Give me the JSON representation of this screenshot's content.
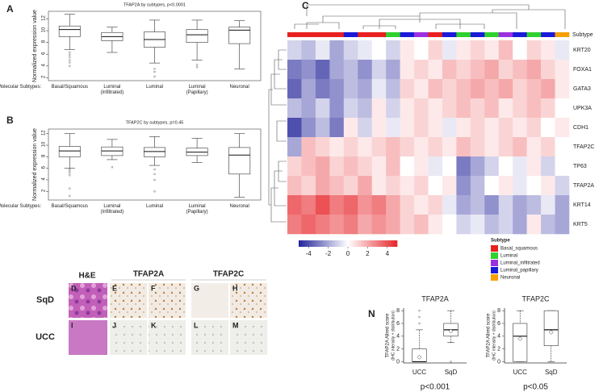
{
  "chart_data": [
    {
      "type": "box",
      "title": "TFAP2A by subtypes, p<0.0001",
      "ylabel": "Normalized expression value",
      "x_label": "Molecular Subtypes:",
      "categories": [
        "Basal/Squamous",
        "Luminal\n(Infiltrated)",
        "Luminal",
        "Luminal\n(Papillary)",
        "Neuronal"
      ],
      "boxes": [
        {
          "min": 6.8,
          "q1": 9.0,
          "median": 10.2,
          "q3": 10.8,
          "max": 12.8,
          "outliers": [
            6.3,
            5.9,
            5.5,
            5.0,
            4.6,
            4.0
          ]
        },
        {
          "min": 6.3,
          "q1": 8.3,
          "median": 9.0,
          "q3": 9.7,
          "max": 10.6,
          "outliers": []
        },
        {
          "min": 4.5,
          "q1": 7.2,
          "median": 8.5,
          "q3": 9.8,
          "max": 11.8,
          "outliers": [
            3.5,
            3.0,
            2.2
          ]
        },
        {
          "min": 5.0,
          "q1": 8.0,
          "median": 9.3,
          "q3": 10.2,
          "max": 11.8,
          "outliers": [
            4.2,
            3.8
          ]
        },
        {
          "min": 3.5,
          "q1": 7.8,
          "median": 10.1,
          "q3": 10.6,
          "max": 11.7,
          "outliers": []
        }
      ],
      "ylim": [
        1.5,
        13.3
      ],
      "yticks": [
        2,
        4,
        6,
        8,
        10,
        12
      ]
    },
    {
      "type": "box",
      "title": "TFAP2C by subtypes, p=0.45",
      "ylabel": "Normalized expression value",
      "x_label": "Molecular Subtypes:",
      "categories": [
        "Basal/Squamous",
        "Luminal\n(Infiltrated)",
        "Luminal",
        "Luminal\n(Papillary)",
        "Neuronal"
      ],
      "boxes": [
        {
          "min": 6.0,
          "q1": 8.0,
          "median": 9.0,
          "q3": 9.8,
          "max": 12.0,
          "outliers": [
            5.8,
            5.5,
            5.2,
            4.8,
            2.5,
            1.2
          ]
        },
        {
          "min": 7.5,
          "q1": 8.2,
          "median": 9.0,
          "q3": 9.7,
          "max": 11.0,
          "outliers": [
            6.2
          ]
        },
        {
          "min": 6.5,
          "q1": 8.0,
          "median": 8.9,
          "q3": 9.6,
          "max": 11.5,
          "outliers": [
            5.8,
            5.0,
            4.0,
            2.0
          ]
        },
        {
          "min": 7.0,
          "q1": 8.2,
          "median": 8.8,
          "q3": 9.5,
          "max": 11.2,
          "outliers": []
        },
        {
          "min": 1.0,
          "q1": 5.0,
          "median": 8.3,
          "q3": 9.6,
          "max": 12.0,
          "outliers": []
        }
      ],
      "ylim": [
        0.5,
        12.8
      ],
      "yticks": [
        2,
        4,
        6,
        8,
        10,
        12
      ]
    },
    {
      "type": "heatmap",
      "annotation_label": "Subtype",
      "rows": [
        "KRT20",
        "FOXA1",
        "GATA3",
        "UPK3A",
        "CDH1",
        "TFAP2C",
        "TP63",
        "TFAP2A",
        "KRT14",
        "KRT5"
      ],
      "column_subtype": [
        0,
        0,
        0,
        0,
        3,
        0,
        0,
        1,
        3,
        2,
        0,
        3,
        1,
        3,
        1,
        2,
        3,
        1,
        3,
        4
      ],
      "matrix": [
        [
          -1,
          -1.5,
          -0.5,
          -2,
          -1,
          -0.5,
          0,
          -1,
          0.5,
          0,
          1,
          -0.5,
          0.5,
          1,
          0.5,
          1.5,
          0,
          1,
          0.5,
          -0.5
        ],
        [
          -3,
          -2.5,
          -3.5,
          -2,
          -1.5,
          -2.5,
          -1,
          -2,
          0.5,
          1,
          0.5,
          1.5,
          1,
          1.5,
          2,
          1,
          1.5,
          2,
          1,
          0.5
        ],
        [
          -3.5,
          -2,
          -3,
          -2.5,
          -1.5,
          -2,
          -0.5,
          -1.5,
          1,
          0.5,
          1.5,
          1,
          1.5,
          2,
          1.5,
          2,
          1,
          1.5,
          2,
          0.5
        ],
        [
          -1.5,
          -2,
          -1,
          -2.5,
          -1,
          -1.5,
          0.5,
          -1,
          0.5,
          1,
          0.5,
          1,
          1.5,
          1,
          1.5,
          0.5,
          1,
          1.5,
          1,
          0
        ],
        [
          -4,
          -2.5,
          -1.5,
          -3,
          0.5,
          -1,
          0.5,
          -0.5,
          0.5,
          1,
          0.5,
          -0.5,
          0.5,
          1,
          0.5,
          1,
          0.5,
          1,
          0,
          0.5
        ],
        [
          -2,
          1.5,
          1,
          0.5,
          1,
          0.5,
          1,
          1.5,
          1,
          0.5,
          1,
          0.5,
          1.5,
          1,
          0.5,
          1,
          1.5,
          0.5,
          1,
          0
        ],
        [
          1,
          1.5,
          2,
          1,
          1.5,
          1,
          0.5,
          1.5,
          0,
          0.5,
          -0.5,
          0,
          -3,
          -2,
          -1,
          0,
          -0.5,
          0.5,
          -1,
          0
        ],
        [
          1.5,
          1,
          2,
          1.5,
          1,
          2,
          0.5,
          1,
          0.5,
          1,
          0,
          0.5,
          -2.5,
          -1.5,
          0,
          0.5,
          -0.5,
          0,
          0.5,
          -1
        ],
        [
          3.5,
          3,
          4,
          3,
          3.5,
          2.5,
          3,
          2,
          1,
          0.5,
          1,
          -0.5,
          -2,
          -1.5,
          -2.5,
          -1,
          -2,
          -1.5,
          -0.5,
          -2
        ],
        [
          3,
          3.5,
          3,
          2.5,
          3,
          2,
          2.5,
          2,
          1,
          1.5,
          0.5,
          0,
          -1,
          -0.5,
          -1.5,
          -1,
          -2,
          0.5,
          -1.5,
          -2
        ]
      ],
      "colorbar": {
        "lim": [
          -5,
          5
        ],
        "ticks": [
          -4,
          -2,
          0,
          2,
          4
        ],
        "colors": [
          "#23239a",
          "#ffffff",
          "#e6262a"
        ]
      },
      "legend_title": "Subtype",
      "subtypes": [
        {
          "name": "Basal_squamous",
          "color": "#e8201f"
        },
        {
          "name": "Luminal",
          "color": "#2ed12e"
        },
        {
          "name": "Luminal_infiltrated",
          "color": "#9b30e0"
        },
        {
          "name": "Luminal_papillary",
          "color": "#1a1ad8"
        },
        {
          "name": "Neuronal",
          "color": "#f5a000"
        }
      ]
    },
    {
      "type": "box",
      "title": "TFAP2A",
      "ylabel": "TFAP2A Allred score",
      "ylabel_note": "(IHC intensity + distribution)",
      "annotation": "p<0.001",
      "categories": [
        "UCC",
        "SqD"
      ],
      "boxes": [
        {
          "min": 0,
          "q1": 0,
          "median": 0,
          "q3": 2,
          "max": 5,
          "mean": 0.7,
          "outliers": [
            6,
            7,
            8
          ]
        },
        {
          "min": 3,
          "q1": 4,
          "median": 5,
          "q3": 6,
          "max": 8,
          "mean": 4.8,
          "outliers": [
            0
          ]
        }
      ],
      "ylim": [
        -0.2,
        8.4
      ],
      "yticks": [
        0,
        2,
        4,
        6,
        8
      ]
    },
    {
      "type": "box",
      "title": "TFAP2C",
      "ylabel": "TFAP2A Allred score",
      "ylabel_note": "(IHC intensity + distribution)",
      "annotation": "p<0.05",
      "categories": [
        "UCC",
        "SqD"
      ],
      "boxes": [
        {
          "min": 0,
          "q1": 0,
          "median": 4,
          "q3": 6,
          "max": 8,
          "mean": 3.6,
          "outliers": []
        },
        {
          "min": 0,
          "q1": 2.5,
          "median": 5,
          "q3": 8,
          "max": 8,
          "mean": 4.6,
          "outliers": []
        }
      ],
      "ylim": [
        -0.2,
        8.4
      ],
      "yticks": [
        0,
        2,
        4,
        6,
        8
      ]
    }
  ],
  "panel_labels": [
    "A",
    "B",
    "C",
    "N"
  ],
  "histology": {
    "columns": [
      "H&E",
      "TFAP2A",
      "TFAP2C"
    ],
    "rows": [
      "SqD",
      "UCC"
    ],
    "panels": [
      "D",
      "E",
      "F",
      "G",
      "H",
      "I",
      "J",
      "K",
      "L",
      "M"
    ]
  }
}
